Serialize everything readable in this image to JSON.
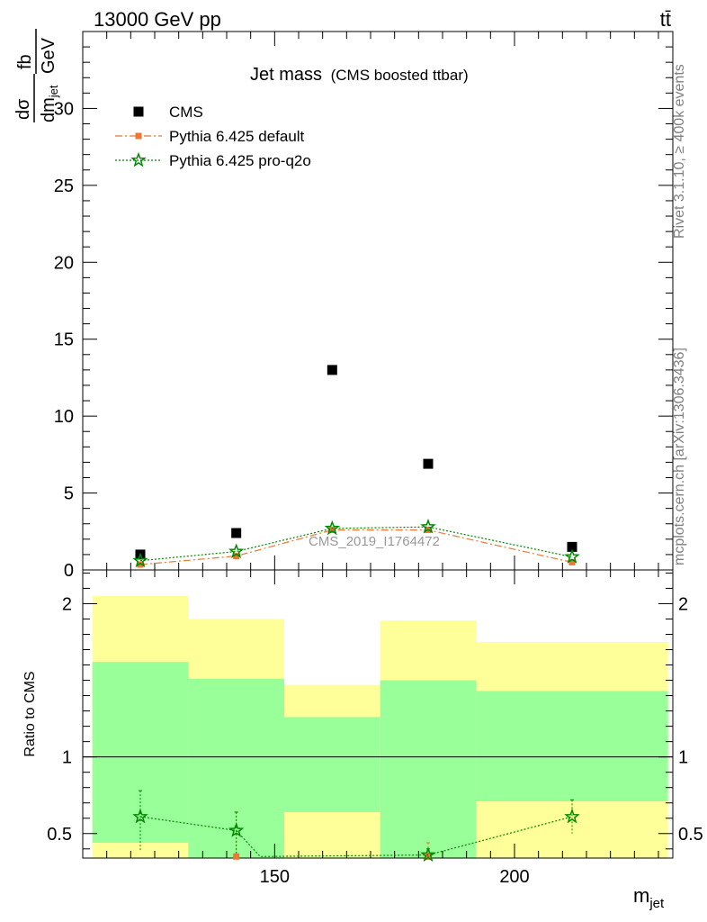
{
  "header": {
    "energy_label": "13000 GeV pp",
    "process_label": "tt̄"
  },
  "side_labels": {
    "rivet": "Rivet 3.1.10, ≥ 400k events",
    "mcplots": "mcplots.cern.ch [arXiv:1306.3436]"
  },
  "watermark": "CMS_2019_I1764472",
  "chart_data": [
    {
      "type": "scatter",
      "panel": "main",
      "title_main": "Jet mass",
      "title_sub": "(CMS boosted ttbar)",
      "ylabel": {
        "numerator": "dσ",
        "denominator": "dm",
        "subscript": "jet",
        "unit_num": "fb",
        "unit_den": "GeV"
      },
      "xlim": [
        110,
        233
      ],
      "ylim": [
        0,
        35
      ],
      "yticks": [
        0,
        5,
        10,
        15,
        20,
        25,
        30
      ],
      "legend_position": "top-left",
      "series": [
        {
          "name": "CMS",
          "color": "#000000",
          "marker": "square",
          "x": [
            122,
            142,
            162,
            182,
            212
          ],
          "y": [
            1.0,
            2.4,
            13.0,
            6.9,
            1.5
          ]
        },
        {
          "name": "Pythia 6.425 default",
          "color": "#ee7733",
          "marker": "square",
          "line": "dashdot",
          "x": [
            122,
            142,
            162,
            182,
            212
          ],
          "y": [
            0.35,
            0.9,
            2.6,
            2.6,
            0.5
          ]
        },
        {
          "name": "Pythia 6.425 pro-q2o",
          "color": "#008800",
          "marker": "star",
          "line": "dotted",
          "x": [
            122,
            142,
            162,
            182,
            212
          ],
          "y": [
            0.6,
            1.2,
            2.7,
            2.8,
            0.85
          ]
        }
      ]
    },
    {
      "type": "scatter",
      "panel": "ratio",
      "ylabel": "Ratio to CMS",
      "xlabel": {
        "main": "m",
        "subscript": "jet"
      },
      "xlim": [
        110,
        233
      ],
      "ylim": [
        0.34,
        2.22
      ],
      "yticks": [
        0.5,
        1,
        2
      ],
      "xticks": [
        150,
        200
      ],
      "bands": [
        {
          "x0": 112,
          "x1": 132,
          "green": [
            0.44,
            1.62
          ],
          "yellow": [
            0.33,
            2.05
          ]
        },
        {
          "x0": 132,
          "x1": 152,
          "green": [
            0.33,
            1.51
          ],
          "yellow": [
            0.33,
            1.9
          ]
        },
        {
          "x0": 152,
          "x1": 172,
          "green": [
            0.64,
            1.26
          ],
          "yellow": [
            0.33,
            1.47
          ]
        },
        {
          "x0": 172,
          "x1": 192,
          "green": [
            0.33,
            1.5
          ],
          "yellow": [
            0.33,
            1.89
          ]
        },
        {
          "x0": 192,
          "x1": 232,
          "green": [
            0.71,
            1.43
          ],
          "yellow": [
            0.33,
            1.75
          ]
        }
      ],
      "series": [
        {
          "name": "Pythia 6.425 default",
          "color": "#ee7733",
          "marker": "square",
          "x": [
            142,
            182
          ],
          "y": [
            0.35,
            0.35
          ],
          "err_high": [
            0.64,
            0.44
          ]
        },
        {
          "name": "Pythia 6.425 pro-q2o",
          "color": "#008800",
          "marker": "star",
          "line": "dotted",
          "x": [
            122,
            142,
            147,
            182,
            212
          ],
          "y": [
            0.61,
            0.52,
            0.35,
            0.36,
            0.61
          ],
          "err_low": [
            0.39,
            0.36,
            null,
            0.33,
            0.5
          ],
          "err_high": [
            0.78,
            0.64,
            null,
            0.4,
            0.72
          ]
        }
      ]
    }
  ]
}
